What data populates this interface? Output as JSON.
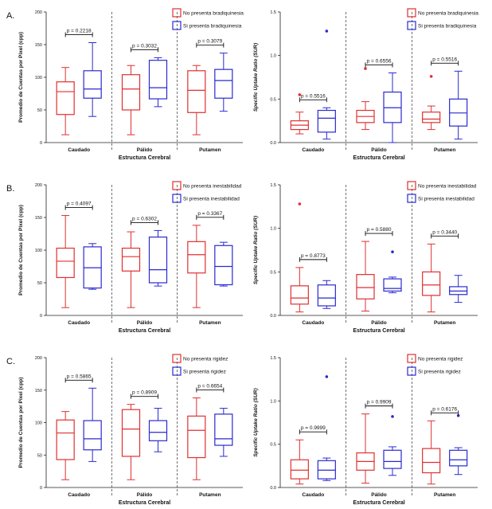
{
  "colors": {
    "no": "#e03030",
    "si": "#2a2ad0",
    "axis": "#222222"
  },
  "chart_data": [
    {
      "type": "boxplot",
      "panel": "A.",
      "row": 0,
      "col": 0,
      "ylabel": "Promedio de Cuentas por Pixel (cpp)",
      "ylabel_italic": false,
      "xlabel": "Estructura Cerebral",
      "ylim": [
        0,
        200
      ],
      "yticks": [
        "0",
        "50",
        "100",
        "150",
        "200"
      ],
      "ytick_values": [
        0,
        50,
        100,
        150,
        200
      ],
      "categories": [
        "Caudado",
        "Pálido",
        "Putamen"
      ],
      "legend": [
        "No presenta bradiquinesia",
        "Si presenta bradiquinesia"
      ],
      "p_values": [
        "p = 0.2218",
        "p = 0.3032",
        "p = 0.3079"
      ],
      "boxes": [
        [
          {
            "min": 12,
            "q1": 43,
            "median": 78,
            "q3": 93,
            "max": 115,
            "outliers": []
          },
          {
            "min": 40,
            "q1": 68,
            "median": 82,
            "q3": 110,
            "max": 153,
            "outliers": []
          }
        ],
        [
          {
            "min": 12,
            "q1": 50,
            "median": 82,
            "q3": 104,
            "max": 118,
            "outliers": []
          },
          {
            "min": 55,
            "q1": 67,
            "median": 84,
            "q3": 126,
            "max": 130,
            "outliers": []
          }
        ],
        [
          {
            "min": 12,
            "q1": 46,
            "median": 80,
            "q3": 110,
            "max": 118,
            "outliers": []
          },
          {
            "min": 48,
            "q1": 68,
            "median": 95,
            "q3": 112,
            "max": 137,
            "outliers": []
          }
        ]
      ]
    },
    {
      "type": "boxplot",
      "panel": "",
      "row": 0,
      "col": 1,
      "ylabel": "Specific Uptake Ratio (SUR)",
      "ylabel_italic": true,
      "xlabel": "Estructura Cerebral",
      "ylim": [
        0,
        1.5
      ],
      "yticks": [
        "0.0",
        "0.5",
        "1.0",
        "1.5"
      ],
      "ytick_values": [
        0,
        0.5,
        1.0,
        1.5
      ],
      "categories": [
        "Caudado",
        "Pálido",
        "Putamen"
      ],
      "legend": [
        "No presenta bradiquinesia",
        "Si presenta bradiquinesia"
      ],
      "p_values": [
        "p = 0.5516",
        "p = 0.6556",
        "p = 0.5516"
      ],
      "boxes": [
        [
          {
            "min": 0.1,
            "q1": 0.15,
            "median": 0.2,
            "q3": 0.25,
            "max": 0.35,
            "outliers": [
              0.55
            ]
          },
          {
            "min": 0.04,
            "q1": 0.12,
            "median": 0.28,
            "q3": 0.37,
            "max": 0.4,
            "outliers": [
              1.28
            ]
          }
        ],
        [
          {
            "min": 0.15,
            "q1": 0.23,
            "median": 0.3,
            "q3": 0.37,
            "max": 0.47,
            "outliers": [
              0.85
            ]
          },
          {
            "min": 0.0,
            "q1": 0.23,
            "median": 0.4,
            "q3": 0.58,
            "max": 0.8,
            "outliers": []
          }
        ],
        [
          {
            "min": 0.15,
            "q1": 0.23,
            "median": 0.27,
            "q3": 0.35,
            "max": 0.42,
            "outliers": [
              0.76
            ]
          },
          {
            "min": 0.04,
            "q1": 0.19,
            "median": 0.34,
            "q3": 0.5,
            "max": 0.82,
            "outliers": []
          }
        ]
      ]
    },
    {
      "type": "boxplot",
      "panel": "B.",
      "row": 1,
      "col": 0,
      "ylabel": "Promedio de Cuentas por Pixel (cpp)",
      "ylabel_italic": false,
      "xlabel": "Estructura Cerebral",
      "ylim": [
        0,
        200
      ],
      "yticks": [
        "0",
        "50",
        "100",
        "150",
        "200"
      ],
      "ytick_values": [
        0,
        50,
        100,
        150,
        200
      ],
      "categories": [
        "Caudado",
        "Pálido",
        "Putamen"
      ],
      "legend": [
        "No presenta inestabilidad",
        "Si presenta inestabilidad"
      ],
      "p_values": [
        "p = 0.4097",
        "p = 0.6302",
        "p = 0.3367"
      ],
      "boxes": [
        [
          {
            "min": 12,
            "q1": 58,
            "median": 83,
            "q3": 103,
            "max": 153,
            "outliers": []
          },
          {
            "min": 40,
            "q1": 42,
            "median": 73,
            "q3": 105,
            "max": 110,
            "outliers": []
          }
        ],
        [
          {
            "min": 12,
            "q1": 68,
            "median": 90,
            "q3": 103,
            "max": 128,
            "outliers": []
          },
          {
            "min": 45,
            "q1": 50,
            "median": 70,
            "q3": 120,
            "max": 130,
            "outliers": []
          }
        ],
        [
          {
            "min": 12,
            "q1": 65,
            "median": 93,
            "q3": 113,
            "max": 138,
            "outliers": []
          },
          {
            "min": 45,
            "q1": 47,
            "median": 75,
            "q3": 107,
            "max": 112,
            "outliers": []
          }
        ]
      ]
    },
    {
      "type": "boxplot",
      "panel": "",
      "row": 1,
      "col": 1,
      "ylabel": "Specific Uptake Ratio (SUR)",
      "ylabel_italic": true,
      "xlabel": "Estructura Cerebral",
      "ylim": [
        0,
        1.5
      ],
      "yticks": [
        "0.0",
        "0.5",
        "1.0",
        "1.5"
      ],
      "ytick_values": [
        0,
        0.5,
        1.0,
        1.5
      ],
      "categories": [
        "Caudado",
        "Pálido",
        "Putamen"
      ],
      "legend": [
        "No presenta inestabilidad",
        "Si presenta inestabilidad"
      ],
      "p_values": [
        "p = 0.8773",
        "p = 0.5880",
        "p = 0.3440"
      ],
      "boxes": [
        [
          {
            "min": 0.04,
            "q1": 0.13,
            "median": 0.2,
            "q3": 0.34,
            "max": 0.55,
            "outliers": [
              1.28
            ]
          },
          {
            "min": 0.08,
            "q1": 0.11,
            "median": 0.2,
            "q3": 0.35,
            "max": 0.4,
            "outliers": []
          }
        ],
        [
          {
            "min": 0.05,
            "q1": 0.19,
            "median": 0.32,
            "q3": 0.47,
            "max": 0.85,
            "outliers": []
          },
          {
            "min": 0.26,
            "q1": 0.28,
            "median": 0.31,
            "q3": 0.42,
            "max": 0.44,
            "outliers": [
              0.73
            ]
          }
        ],
        [
          {
            "min": 0.04,
            "q1": 0.23,
            "median": 0.35,
            "q3": 0.5,
            "max": 0.82,
            "outliers": []
          },
          {
            "min": 0.15,
            "q1": 0.24,
            "median": 0.28,
            "q3": 0.33,
            "max": 0.46,
            "outliers": []
          }
        ]
      ]
    },
    {
      "type": "boxplot",
      "panel": "C.",
      "row": 2,
      "col": 0,
      "ylabel": "Promedio de Cuentas por Pixel (cpp)",
      "ylabel_italic": false,
      "xlabel": "Estructura Cerebral",
      "ylim": [
        0,
        200
      ],
      "yticks": [
        "0",
        "50",
        "100",
        "150",
        "200"
      ],
      "ytick_values": [
        0,
        50,
        100,
        150,
        200
      ],
      "categories": [
        "Caudado",
        "Pálido",
        "Putamen"
      ],
      "legend": [
        "No presenta rigidez",
        "Si presenta rigidez"
      ],
      "p_values": [
        "p = 0.5865",
        "p = 0.8909",
        "p = 0.6654"
      ],
      "boxes": [
        [
          {
            "min": 12,
            "q1": 43,
            "median": 84,
            "q3": 104,
            "max": 117,
            "outliers": []
          },
          {
            "min": 40,
            "q1": 58,
            "median": 75,
            "q3": 103,
            "max": 153,
            "outliers": []
          }
        ],
        [
          {
            "min": 12,
            "q1": 48,
            "median": 90,
            "q3": 120,
            "max": 128,
            "outliers": []
          },
          {
            "min": 55,
            "q1": 72,
            "median": 85,
            "q3": 103,
            "max": 122,
            "outliers": []
          }
        ],
        [
          {
            "min": 12,
            "q1": 46,
            "median": 88,
            "q3": 110,
            "max": 138,
            "outliers": []
          },
          {
            "min": 48,
            "q1": 65,
            "median": 75,
            "q3": 113,
            "max": 122,
            "outliers": []
          }
        ]
      ]
    },
    {
      "type": "boxplot",
      "panel": "",
      "row": 2,
      "col": 1,
      "ylabel": "Specific Uptake Ratio (SUR)",
      "ylabel_italic": true,
      "xlabel": "Estructura Cerebral",
      "ylim": [
        0,
        1.5
      ],
      "yticks": [
        "0.0",
        "0.5",
        "1.0",
        "1.5"
      ],
      "ytick_values": [
        0,
        0.5,
        1.0,
        1.5
      ],
      "categories": [
        "Caudado",
        "Pálido",
        "Putamen"
      ],
      "legend": [
        "No presenta rigidez",
        "Si presenta rigidez"
      ],
      "p_values": [
        "p = 0.9999",
        "p = 0.9909",
        "p = 0.6176"
      ],
      "boxes": [
        [
          {
            "min": 0.04,
            "q1": 0.1,
            "median": 0.2,
            "q3": 0.32,
            "max": 0.55,
            "outliers": []
          },
          {
            "min": 0.08,
            "q1": 0.1,
            "median": 0.2,
            "q3": 0.31,
            "max": 0.34,
            "outliers": [
              1.28
            ]
          }
        ],
        [
          {
            "min": 0.05,
            "q1": 0.2,
            "median": 0.3,
            "q3": 0.4,
            "max": 0.85,
            "outliers": []
          },
          {
            "min": 0.14,
            "q1": 0.22,
            "median": 0.3,
            "q3": 0.43,
            "max": 0.47,
            "outliers": [
              0.82
            ]
          }
        ],
        [
          {
            "min": 0.04,
            "q1": 0.17,
            "median": 0.29,
            "q3": 0.45,
            "max": 0.77,
            "outliers": []
          },
          {
            "min": 0.15,
            "q1": 0.25,
            "median": 0.32,
            "q3": 0.43,
            "max": 0.46,
            "outliers": [
              0.83
            ]
          }
        ]
      ]
    }
  ]
}
